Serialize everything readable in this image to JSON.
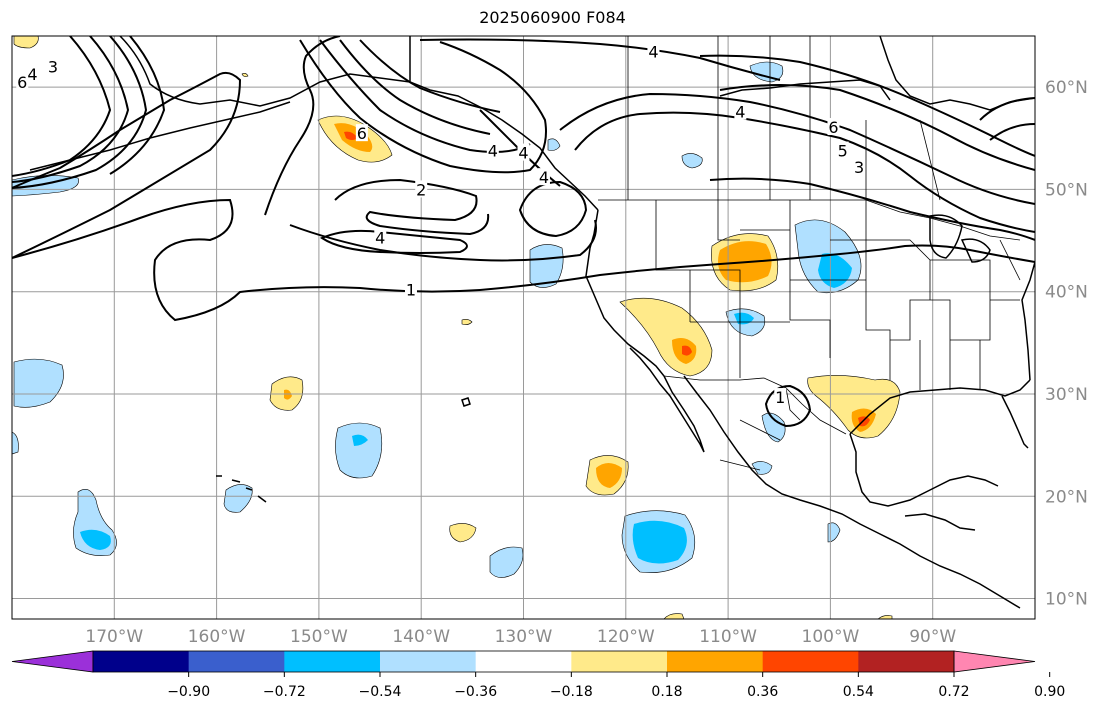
{
  "title": "2025060900 F084",
  "map": {
    "projection": "plate-carree",
    "lon_range": [
      -180,
      -80
    ],
    "lat_range": [
      8,
      65
    ],
    "grid": true,
    "lat_ticks": [
      {
        "value": 10,
        "label": "10°N"
      },
      {
        "value": 20,
        "label": "20°N"
      },
      {
        "value": 30,
        "label": "30°N"
      },
      {
        "value": 40,
        "label": "40°N"
      },
      {
        "value": 50,
        "label": "50°N"
      },
      {
        "value": 60,
        "label": "60°N"
      }
    ],
    "lon_ticks": [
      {
        "value": -170,
        "label": "170°W"
      },
      {
        "value": -160,
        "label": "160°W"
      },
      {
        "value": -150,
        "label": "150°W"
      },
      {
        "value": -140,
        "label": "140°W"
      },
      {
        "value": -130,
        "label": "130°W"
      },
      {
        "value": -120,
        "label": "120°W"
      },
      {
        "value": -110,
        "label": "110°W"
      },
      {
        "value": -100,
        "label": "100°W"
      },
      {
        "value": -90,
        "label": "90°W"
      }
    ],
    "contour_labels": [
      {
        "text": "6",
        "lon": -179,
        "lat": 60.5
      },
      {
        "text": "4",
        "lon": -178,
        "lat": 61.3
      },
      {
        "text": "3",
        "lon": -176,
        "lat": 62
      },
      {
        "text": "6",
        "lon": -145.8,
        "lat": 55.5
      },
      {
        "text": "2",
        "lon": -140,
        "lat": 50
      },
      {
        "text": "4",
        "lon": -144,
        "lat": 45.3
      },
      {
        "text": "1",
        "lon": -141,
        "lat": 40.2
      },
      {
        "text": "4",
        "lon": -133,
        "lat": 53.8
      },
      {
        "text": "4",
        "lon": -130,
        "lat": 53.6
      },
      {
        "text": "4",
        "lon": -128,
        "lat": 51.2
      },
      {
        "text": "4",
        "lon": -117.3,
        "lat": 63.5
      },
      {
        "text": "4",
        "lon": -108.8,
        "lat": 57.6
      },
      {
        "text": "6",
        "lon": -99.7,
        "lat": 56.1
      },
      {
        "text": "5",
        "lon": -98.8,
        "lat": 53.8
      },
      {
        "text": "3",
        "lon": -97.2,
        "lat": 52.2
      },
      {
        "text": "1",
        "lon": -104.9,
        "lat": 29.7
      }
    ]
  },
  "colorbar": {
    "colors": [
      "#9b30d9",
      "#00008b",
      "#3a5fcd",
      "#00bfff",
      "#b0e0ff",
      "#ffffff",
      "#ffea8a",
      "#ffa500",
      "#ff4500",
      "#b22222",
      "#ff86b1"
    ],
    "ticks": [
      "−0.90",
      "−0.72",
      "−0.54",
      "−0.36",
      "−0.18",
      "0.18",
      "0.36",
      "0.54",
      "0.72",
      "0.90"
    ]
  },
  "shading_colors": {
    "neg_light": "#b0e0ff",
    "neg_mid": "#00bfff",
    "pos_light": "#ffea8a",
    "pos_mid": "#ffa500",
    "pos_strong": "#ff4500"
  }
}
